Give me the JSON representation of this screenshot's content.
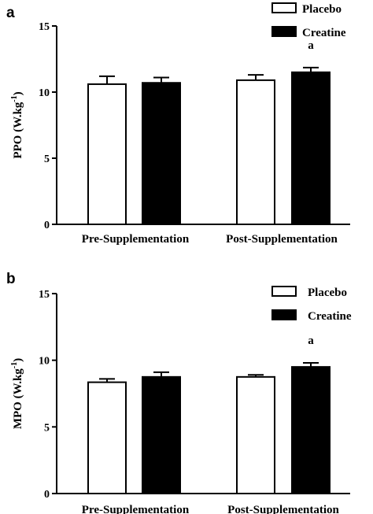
{
  "chart_data": [
    {
      "type": "bar",
      "panel": "a",
      "ylabel": "PPO (W.kg",
      "ylabel_sup": "-1",
      "ylabel_close": ")",
      "ylim": [
        0,
        15
      ],
      "yticks": [
        "0",
        "5",
        "10",
        "15"
      ],
      "categories": [
        "Pre-Supplementation",
        "Post-Supplementation"
      ],
      "series": [
        {
          "name": "Placebo",
          "fill": "#ffffff",
          "values": [
            10.6,
            10.9
          ],
          "errors": [
            0.6,
            0.4
          ]
        },
        {
          "name": "Creatine",
          "fill": "#000000",
          "values": [
            10.7,
            11.5
          ],
          "errors": [
            0.4,
            0.35
          ]
        }
      ],
      "annotations": [
        {
          "text": "a",
          "category": 1,
          "series": 1
        }
      ],
      "legend": "top-right"
    },
    {
      "type": "bar",
      "panel": "b",
      "ylabel": "MPO (W.kg",
      "ylabel_sup": "-1",
      "ylabel_close": ")",
      "ylim": [
        0,
        15
      ],
      "yticks": [
        "0",
        "5",
        "10",
        "15"
      ],
      "categories": [
        "Pre-Supplementation",
        "Post-Supplementation"
      ],
      "series": [
        {
          "name": "Placebo",
          "fill": "#ffffff",
          "values": [
            8.35,
            8.75
          ],
          "errors": [
            0.25,
            0.15
          ]
        },
        {
          "name": "Creatine",
          "fill": "#000000",
          "values": [
            8.75,
            9.5
          ],
          "errors": [
            0.35,
            0.3
          ]
        }
      ],
      "annotations": [
        {
          "text": "a",
          "category": 1,
          "series": 1
        }
      ],
      "legend": "top-right"
    }
  ]
}
